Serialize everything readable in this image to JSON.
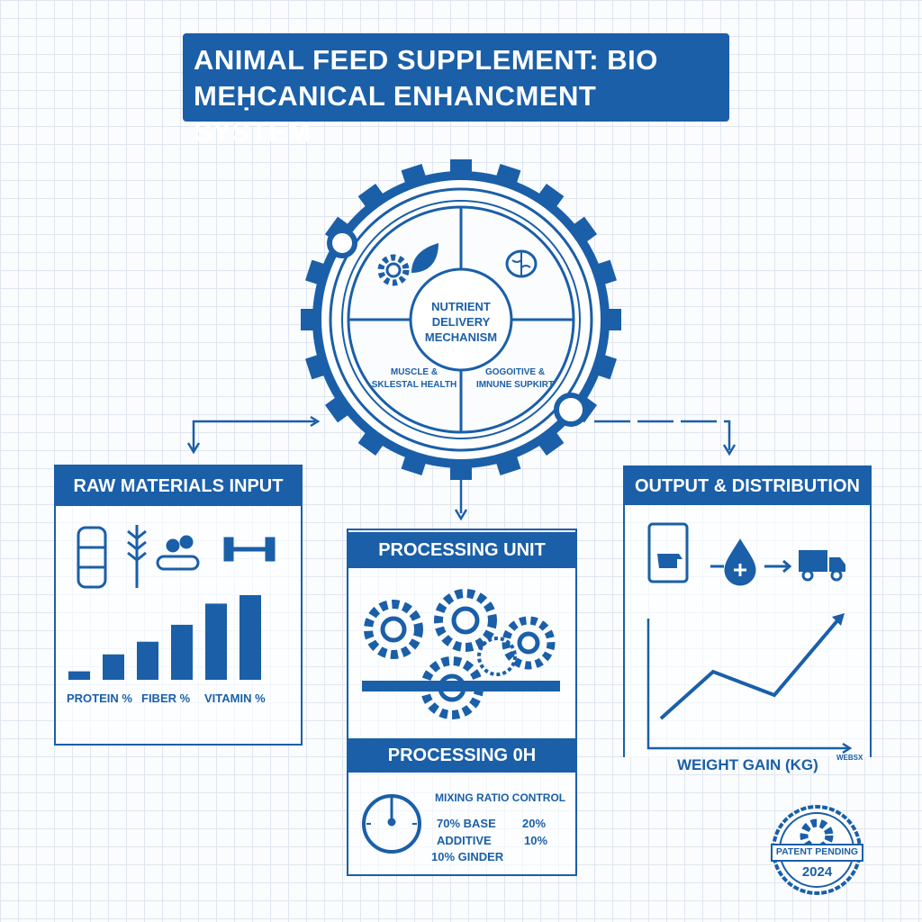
{
  "title": {
    "line1": "ANIMAL FEED SUPPLEMENT: BIO",
    "line2": "MEḤCANICAL ENHANCMENT SYSTEM"
  },
  "center": {
    "core_label": [
      "NUTRIENT",
      "DELIVERY",
      "MECHANISM"
    ],
    "left_label": [
      "MUSCLE &",
      "SKLESTAL HEALTH"
    ],
    "right_label": [
      "GOGOITIVE &",
      "IMNUNE SUPKIRT"
    ],
    "icons": [
      "gear-icon",
      "leaf-icon",
      "brain-icon"
    ]
  },
  "raw_materials": {
    "header": "RAW MATERIALS INPUT",
    "icons": [
      "silo-icon",
      "wheat-icon",
      "conveyor-icon",
      "dumbbell-icon"
    ],
    "bar_levels": [
      1,
      3,
      4.5,
      6.5,
      9,
      10
    ],
    "labels": [
      "PROTEIN %",
      "FIBER %",
      "VITAMIN %"
    ]
  },
  "processing": {
    "header": "PROCESSING UNIT",
    "sub_header": "PROCESSING 0H",
    "control_title": "MIXING RATIO CONTROL",
    "rows": [
      [
        "70% BASE",
        "20%"
      ],
      [
        "ADDITIVE",
        "10%"
      ],
      [
        "10% GINDER",
        ""
      ]
    ]
  },
  "output": {
    "header": "OUTPUT & DISTRIBUTION",
    "icons": [
      "feed-bag-icon",
      "drop-plus-icon",
      "truck-icon"
    ],
    "chart_label": "WEIGHT GAIN (KG)",
    "axis_label": "WEBSX",
    "trend": [
      1,
      5,
      3,
      10
    ]
  },
  "stamp": {
    "text": "PATENT PENDING",
    "year": "2024"
  },
  "colors": {
    "primary": "#1a5fa8",
    "grid": "#dfe6ef"
  }
}
